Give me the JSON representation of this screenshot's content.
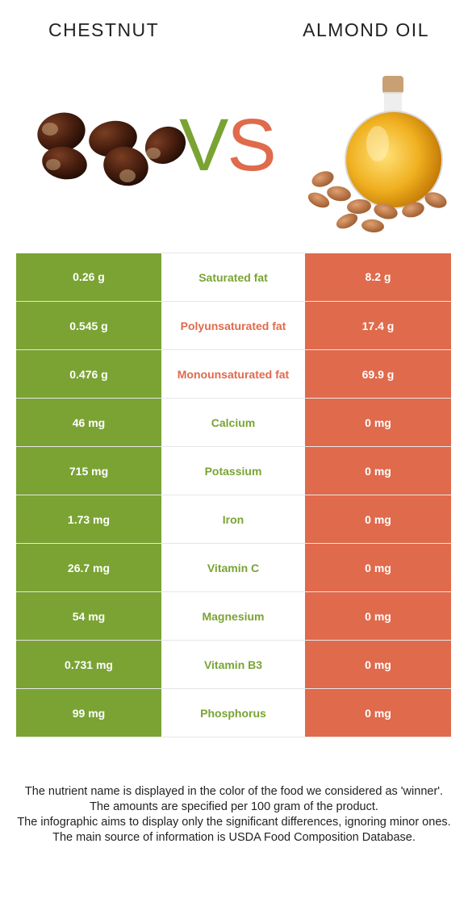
{
  "left_food": {
    "name": "CHESTNUT",
    "color": "#7aa334"
  },
  "right_food": {
    "name": "ALMOND OIL",
    "color": "#e06a4c"
  },
  "vs": {
    "v": "V",
    "s": "S"
  },
  "rows": [
    {
      "left": "0.26 g",
      "nutrient": "Saturated fat",
      "right": "8.2 g",
      "winner": "left"
    },
    {
      "left": "0.545 g",
      "nutrient": "Polyunsaturated fat",
      "right": "17.4 g",
      "winner": "right"
    },
    {
      "left": "0.476 g",
      "nutrient": "Monounsaturated fat",
      "right": "69.9 g",
      "winner": "right"
    },
    {
      "left": "46 mg",
      "nutrient": "Calcium",
      "right": "0 mg",
      "winner": "left"
    },
    {
      "left": "715 mg",
      "nutrient": "Potassium",
      "right": "0 mg",
      "winner": "left"
    },
    {
      "left": "1.73 mg",
      "nutrient": "Iron",
      "right": "0 mg",
      "winner": "left"
    },
    {
      "left": "26.7 mg",
      "nutrient": "Vitamin C",
      "right": "0 mg",
      "winner": "left"
    },
    {
      "left": "54 mg",
      "nutrient": "Magnesium",
      "right": "0 mg",
      "winner": "left"
    },
    {
      "left": "0.731 mg",
      "nutrient": "Vitamin B3",
      "right": "0 mg",
      "winner": "left"
    },
    {
      "left": "99 mg",
      "nutrient": "Phosphorus",
      "right": "0 mg",
      "winner": "left"
    }
  ],
  "footer": {
    "line1": "The nutrient name is displayed in the color of the food we considered as 'winner'.",
    "line2": "The amounts are specified per 100 gram of the product.",
    "line3": "The infographic aims to display only the significant differences, ignoring minor ones.",
    "line4": "The main source of information is USDA Food Composition Database."
  }
}
